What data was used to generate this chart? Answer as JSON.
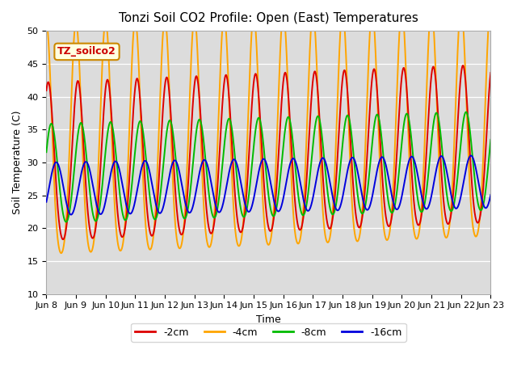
{
  "title": "Tonzi Soil CO2 Profile: Open (East) Temperatures",
  "xlabel": "Time",
  "ylabel": "Soil Temperature (C)",
  "ylim": [
    10,
    50
  ],
  "xlim": [
    0,
    360
  ],
  "background_color": "#dcdcdc",
  "series": {
    "-2cm": {
      "color": "#dd0000",
      "lw": 1.4
    },
    "-4cm": {
      "color": "#ffa500",
      "lw": 1.4
    },
    "-8cm": {
      "color": "#00bb00",
      "lw": 1.4
    },
    "-16cm": {
      "color": "#0000dd",
      "lw": 1.4
    }
  },
  "xtick_labels": [
    "Jun 8",
    "Jun 9",
    "Jun 10",
    "Jun 11",
    "Jun 12",
    "Jun 13",
    "Jun 14",
    "Jun 15",
    "Jun 16",
    "Jun 17",
    "Jun 18",
    "Jun 19",
    "Jun 20",
    "Jun 21",
    "Jun 22",
    "Jun 23"
  ],
  "xtick_positions": [
    0,
    24,
    48,
    72,
    96,
    120,
    144,
    168,
    192,
    216,
    240,
    264,
    288,
    312,
    336,
    360
  ],
  "legend_label": "TZ_soilco2",
  "legend_box_color": "#ffffe0",
  "legend_box_edge": "#cc8800"
}
